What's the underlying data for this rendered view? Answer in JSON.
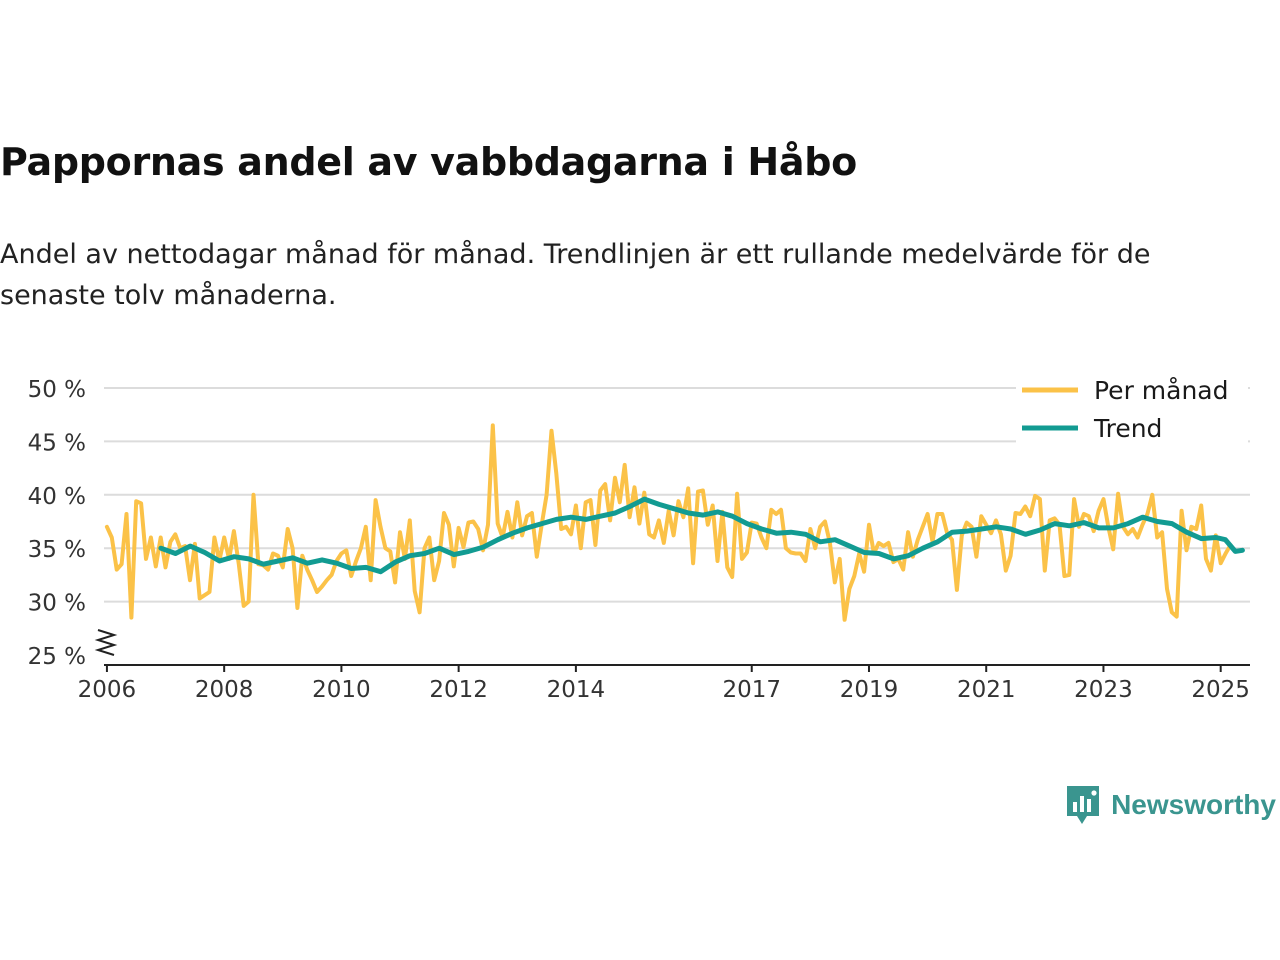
{
  "title": "Pappornas andel av vabbdagarna i Håbo",
  "subtitle": "Andel av nettodagar månad för månad. Trendlinjen är ett rullande medelvärde för de senaste tolv månaderna.",
  "brand": {
    "name": "Newsworthy",
    "icon": "newsworthy-logo-icon"
  },
  "colors": {
    "monthly": "#fbc248",
    "trend": "#129b92",
    "grid": "#dcdcdc",
    "axis": "#222222",
    "brand": "#3a958f"
  },
  "chart_data": {
    "type": "line",
    "title": "Pappornas andel av vabbdagarna i Håbo",
    "xlabel": "",
    "ylabel": "",
    "xlim": [
      2005.95,
      2025.5
    ],
    "ylim": [
      25,
      50
    ],
    "y_axis_break": true,
    "grid": true,
    "legend_position": "top-right",
    "x_ticks": [
      2006,
      2008,
      2010,
      2012,
      2014,
      2017,
      2019,
      2021,
      2023,
      2025
    ],
    "x_tick_labels": [
      "2006",
      "2008",
      "2010",
      "2012",
      "2014",
      "2017",
      "2019",
      "2021",
      "2023",
      "2025"
    ],
    "y_ticks": [
      25,
      30,
      35,
      40,
      45,
      50
    ],
    "y_tick_labels": [
      "25 %",
      "30 %",
      "35 %",
      "40 %",
      "45 %",
      "50 %"
    ],
    "series": [
      {
        "name": "Per månad",
        "key": "monthly",
        "start": 2006.0,
        "step_months": 1,
        "values": [
          37.0,
          36.0,
          33.0,
          33.5,
          38.2,
          28.5,
          39.4,
          39.2,
          34.0,
          36.0,
          33.3,
          36.0,
          33.2,
          35.6,
          36.3,
          35.0,
          35.2,
          32.0,
          35.4,
          30.3,
          30.6,
          30.9,
          36.0,
          33.8,
          36.0,
          34.0,
          36.6,
          33.5,
          29.6,
          30.0,
          40.0,
          33.5,
          33.4,
          33.0,
          34.5,
          34.3,
          33.2,
          36.8,
          35.0,
          29.4,
          34.3,
          33.0,
          32.0,
          30.9,
          31.4,
          32.0,
          32.5,
          33.8,
          34.5,
          34.8,
          32.4,
          33.8,
          35.0,
          37.0,
          32.0,
          39.5,
          37.0,
          35.0,
          34.7,
          31.8,
          36.5,
          34.0,
          37.6,
          31.0,
          29.0,
          35.0,
          36.0,
          32.0,
          33.8,
          38.3,
          37.2,
          33.3,
          36.9,
          35.1,
          37.4,
          37.5,
          36.8,
          34.8,
          37.2,
          46.5,
          37.3,
          36.0,
          38.4,
          36.0,
          39.3,
          36.2,
          38.0,
          38.3,
          34.2,
          37.2,
          40.0,
          46.0,
          42.0,
          36.8,
          37.0,
          36.3,
          39.0,
          35.0,
          39.3,
          39.5,
          35.3,
          40.4,
          41.0,
          37.6,
          41.6,
          39.3,
          42.8,
          37.9,
          40.7,
          37.3,
          40.2,
          36.3,
          36.0,
          37.6,
          35.5,
          38.5,
          36.2,
          39.4,
          37.9,
          40.6,
          33.6,
          40.3,
          40.4,
          37.2,
          39.0,
          33.8,
          38.4,
          33.2,
          32.3,
          40.1,
          34.0,
          34.6,
          37.4,
          37.3,
          36.0,
          35.0,
          38.6,
          38.2,
          38.6,
          35.0,
          34.6,
          34.5,
          34.5,
          33.8,
          36.8,
          35.0,
          37.0,
          37.5,
          35.5,
          31.8,
          34.0,
          28.3,
          31.2,
          32.4,
          34.5,
          32.8,
          37.2,
          34.5,
          35.5,
          35.2,
          35.5,
          33.7,
          34.0,
          33.0,
          36.5,
          34.2,
          35.8,
          37.0,
          38.2,
          35.6,
          38.2,
          38.2,
          36.4,
          35.8,
          31.1,
          36.2,
          37.4,
          37.0,
          34.2,
          38.0,
          37.2,
          36.4,
          37.6,
          36.3,
          32.9,
          34.3,
          38.3,
          38.2,
          38.9,
          38.0,
          39.9,
          39.6,
          32.9,
          37.6,
          37.8,
          37.2,
          32.4,
          32.5,
          39.6,
          37.0,
          38.2,
          38.0,
          36.6,
          38.5,
          39.6,
          37.0,
          34.9,
          40.1,
          37.0,
          36.3,
          36.8,
          36.0,
          37.2,
          38.2,
          40.0,
          36.0,
          36.5,
          31.2,
          29.0,
          28.6,
          38.5,
          34.8,
          37.0,
          36.8,
          39.0,
          34.0,
          32.9,
          36.2,
          33.6,
          34.5,
          35.3
        ]
      },
      {
        "name": "Trend",
        "key": "trend",
        "x": [
          2006.92,
          2007.17,
          2007.42,
          2007.67,
          2007.92,
          2008.17,
          2008.42,
          2008.67,
          2008.92,
          2009.17,
          2009.42,
          2009.67,
          2009.92,
          2010.17,
          2010.42,
          2010.67,
          2010.92,
          2011.17,
          2011.42,
          2011.67,
          2011.92,
          2012.17,
          2012.42,
          2012.67,
          2012.92,
          2013.17,
          2013.42,
          2013.67,
          2013.92,
          2014.17,
          2014.42,
          2014.67,
          2014.92,
          2015.17,
          2015.42,
          2015.67,
          2015.92,
          2016.17,
          2016.42,
          2016.67,
          2016.92,
          2017.17,
          2017.42,
          2017.67,
          2017.92,
          2018.17,
          2018.42,
          2018.67,
          2018.92,
          2019.17,
          2019.42,
          2019.67,
          2019.92,
          2020.17,
          2020.42,
          2020.67,
          2020.92,
          2021.17,
          2021.42,
          2021.67,
          2021.92,
          2022.17,
          2022.42,
          2022.67,
          2022.92,
          2023.17,
          2023.42,
          2023.67,
          2023.92,
          2024.17,
          2024.42,
          2024.67,
          2024.92,
          2025.08,
          2025.25,
          2025.37
        ],
        "values": [
          35.0,
          34.5,
          35.2,
          34.6,
          33.8,
          34.2,
          34.0,
          33.5,
          33.8,
          34.1,
          33.6,
          33.9,
          33.6,
          33.1,
          33.2,
          32.8,
          33.7,
          34.3,
          34.5,
          35.0,
          34.4,
          34.7,
          35.1,
          35.8,
          36.4,
          36.9,
          37.3,
          37.7,
          37.9,
          37.7,
          38.0,
          38.3,
          38.9,
          39.6,
          39.1,
          38.7,
          38.3,
          38.1,
          38.4,
          38.0,
          37.3,
          36.8,
          36.4,
          36.5,
          36.3,
          35.6,
          35.8,
          35.2,
          34.6,
          34.5,
          34.0,
          34.3,
          35.0,
          35.6,
          36.5,
          36.6,
          36.8,
          37.0,
          36.8,
          36.3,
          36.7,
          37.3,
          37.1,
          37.4,
          36.9,
          36.9,
          37.3,
          37.9,
          37.5,
          37.3,
          36.5,
          35.9,
          36.0,
          35.8,
          34.7,
          34.8
        ]
      }
    ]
  }
}
